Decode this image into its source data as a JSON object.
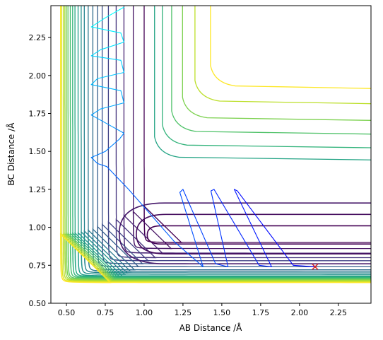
{
  "chart_data": {
    "type": "contour",
    "title": "",
    "xlabel": "AB Distance /Å",
    "ylabel": "BC Distance /Å",
    "xlim": [
      0.4,
      2.46
    ],
    "ylim": [
      0.5,
      2.46
    ],
    "xticks": [
      0.5,
      0.75,
      1.0,
      1.25,
      1.5,
      1.75,
      2.0,
      2.25
    ],
    "xtick_labels": [
      "0.50",
      "0.75",
      "1.00",
      "1.25",
      "1.50",
      "1.75",
      "2.00",
      "2.25"
    ],
    "yticks": [
      0.5,
      0.75,
      1.0,
      1.25,
      1.5,
      1.75,
      2.0,
      2.25
    ],
    "ytick_labels": [
      "0.50",
      "0.75",
      "1.00",
      "1.25",
      "1.50",
      "1.75",
      "2.00",
      "2.25"
    ],
    "grid": false,
    "colormap": "viridis",
    "colors": {
      "colormap_stops": [
        "#440154",
        "#482878",
        "#3e4989",
        "#31688e",
        "#26828e",
        "#1f9e89",
        "#35b779",
        "#6ece58",
        "#b5de2b",
        "#fde725"
      ],
      "trajectory_gradient": [
        "#00ffff",
        "#0000ff"
      ],
      "marker": "#d62728"
    },
    "contour_levels": [
      {
        "asymptote_x": 1.0,
        "asymptote_y": 0.9,
        "level": 0.0
      },
      {
        "asymptote_x": 0.93,
        "asymptote_y": 0.86,
        "level": 0.05
      },
      {
        "asymptote_x": 0.87,
        "asymptote_y": 0.83,
        "level": 0.1
      },
      {
        "asymptote_x": 0.82,
        "asymptote_y": 0.8,
        "level": 0.15
      },
      {
        "asymptote_x": 0.77,
        "asymptote_y": 0.78,
        "level": 0.2
      },
      {
        "asymptote_x": 0.73,
        "asymptote_y": 0.76,
        "level": 0.25
      },
      {
        "asymptote_x": 0.7,
        "asymptote_y": 0.74,
        "level": 0.3
      },
      {
        "asymptote_x": 0.67,
        "asymptote_y": 0.72,
        "level": 0.35
      },
      {
        "asymptote_x": 0.64,
        "asymptote_y": 0.71,
        "level": 0.4
      },
      {
        "asymptote_x": 0.615,
        "asymptote_y": 0.7,
        "level": 0.45
      },
      {
        "asymptote_x": 0.595,
        "asymptote_y": 0.69,
        "level": 0.5
      },
      {
        "asymptote_x": 0.575,
        "asymptote_y": 0.68,
        "level": 0.55
      },
      {
        "asymptote_x": 0.555,
        "asymptote_y": 0.675,
        "level": 0.6
      },
      {
        "asymptote_x": 0.54,
        "asymptote_y": 0.67,
        "level": 0.65
      },
      {
        "asymptote_x": 0.525,
        "asymptote_y": 0.665,
        "level": 0.7
      },
      {
        "asymptote_x": 0.51,
        "asymptote_y": 0.66,
        "level": 0.75
      },
      {
        "asymptote_x": 0.5,
        "asymptote_y": 0.655,
        "level": 0.8
      },
      {
        "asymptote_x": 0.49,
        "asymptote_y": 0.65,
        "level": 0.85
      },
      {
        "asymptote_x": 0.48,
        "asymptote_y": 0.645,
        "level": 0.9
      },
      {
        "asymptote_x": 0.47,
        "asymptote_y": 0.64,
        "level": 0.95
      },
      {
        "asymptote_x": 0.462,
        "asymptote_y": 0.636,
        "level": 1.0
      }
    ],
    "valley_contours": [
      {
        "x_min": 1.02,
        "y_center": 0.95,
        "half_height": 0.06,
        "level": 0.0
      },
      {
        "x_min": 0.95,
        "y_center": 0.955,
        "half_height": 0.13,
        "level": 0.03
      },
      {
        "x_min": 0.84,
        "y_center": 0.96,
        "half_height": 0.2,
        "level": 0.07
      }
    ],
    "ridge_contours": [
      {
        "corner_x": 1.45,
        "corner_y": 1.95,
        "level": 1.0
      },
      {
        "corner_x": 1.35,
        "corner_y": 1.85,
        "level": 0.9
      },
      {
        "corner_x": 1.27,
        "corner_y": 1.74,
        "level": 0.8
      },
      {
        "corner_x": 1.2,
        "corner_y": 1.65,
        "level": 0.72
      },
      {
        "corner_x": 1.14,
        "corner_y": 1.56,
        "level": 0.65
      },
      {
        "corner_x": 1.09,
        "corner_y": 1.48,
        "level": 0.58
      }
    ],
    "series": [
      {
        "type": "trajectory",
        "points": [
          [
            2.1,
            0.74
          ],
          [
            1.96,
            0.75
          ],
          [
            1.6,
            1.24
          ],
          [
            1.58,
            1.25
          ],
          [
            1.82,
            0.74
          ],
          [
            1.74,
            0.75
          ],
          [
            1.45,
            1.25
          ],
          [
            1.43,
            1.24
          ],
          [
            1.54,
            0.74
          ],
          [
            1.46,
            0.76
          ],
          [
            1.25,
            1.25
          ],
          [
            1.23,
            1.23
          ],
          [
            1.38,
            0.74
          ],
          [
            1.2,
            0.9
          ],
          [
            0.9,
            1.25
          ],
          [
            0.76,
            1.4
          ],
          [
            0.7,
            1.42
          ],
          [
            0.66,
            1.46
          ],
          [
            0.75,
            1.5
          ],
          [
            0.84,
            1.58
          ],
          [
            0.87,
            1.62
          ],
          [
            0.8,
            1.66
          ],
          [
            0.66,
            1.74
          ],
          [
            0.72,
            1.78
          ],
          [
            0.87,
            1.82
          ],
          [
            0.85,
            1.9
          ],
          [
            0.66,
            1.94
          ],
          [
            0.7,
            1.98
          ],
          [
            0.87,
            2.02
          ],
          [
            0.85,
            2.1
          ],
          [
            0.66,
            2.13
          ],
          [
            0.72,
            2.17
          ],
          [
            0.87,
            2.22
          ],
          [
            0.85,
            2.28
          ],
          [
            0.66,
            2.32
          ],
          [
            0.75,
            2.38
          ],
          [
            0.87,
            2.45
          ]
        ]
      },
      {
        "type": "marker",
        "symbol": "x",
        "points": [
          [
            2.1,
            0.74
          ]
        ]
      }
    ]
  }
}
